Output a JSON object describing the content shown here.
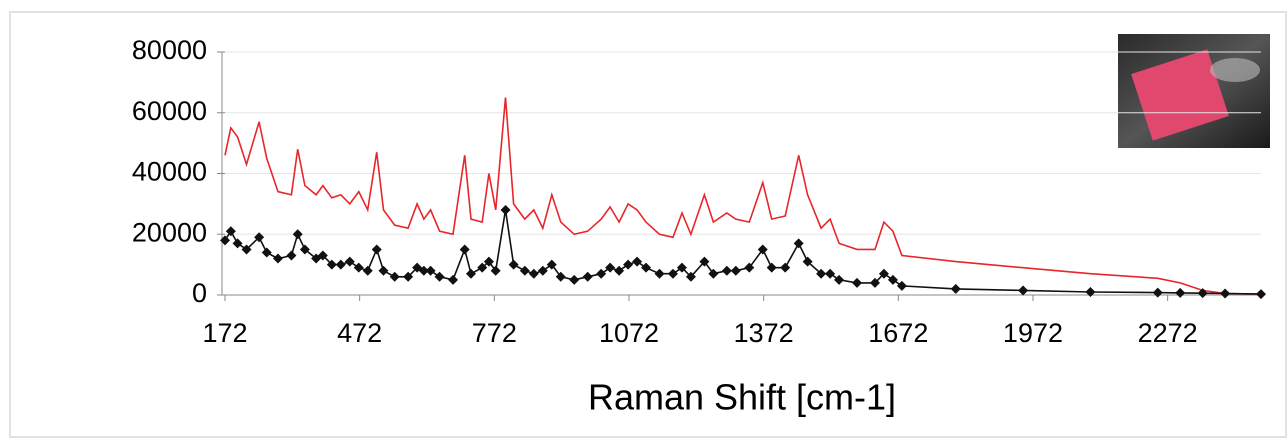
{
  "chart_data": {
    "type": "line",
    "x_label": "Raman Shift [cm-1]",
    "x": [
      172,
      185,
      200,
      220,
      248,
      265,
      290,
      320,
      334,
      350,
      375,
      390,
      410,
      430,
      450,
      470,
      490,
      510,
      525,
      550,
      580,
      600,
      615,
      630,
      650,
      680,
      706,
      720,
      745,
      760,
      775,
      797,
      815,
      840,
      860,
      880,
      900,
      920,
      950,
      980,
      1010,
      1030,
      1050,
      1070,
      1090,
      1110,
      1140,
      1170,
      1190,
      1210,
      1240,
      1260,
      1290,
      1310,
      1340,
      1370,
      1390,
      1420,
      1450,
      1470,
      1500,
      1520,
      1540,
      1580,
      1620,
      1640,
      1660,
      1680,
      1800,
      1950,
      2100,
      2250,
      2300,
      2350,
      2400,
      2480
    ],
    "series": [
      {
        "color": "#e8262a",
        "marker": false,
        "values": [
          46000,
          55000,
          52000,
          43000,
          57000,
          45000,
          34000,
          33000,
          48000,
          36000,
          33000,
          36000,
          32000,
          33000,
          30000,
          34000,
          28000,
          47000,
          28000,
          23000,
          22000,
          30000,
          25000,
          28000,
          21000,
          20000,
          46000,
          25000,
          24000,
          40000,
          28000,
          65000,
          30000,
          25000,
          28000,
          22000,
          33000,
          24000,
          20000,
          21000,
          25000,
          29000,
          24000,
          30000,
          28000,
          24000,
          20000,
          19000,
          27000,
          20000,
          33000,
          24000,
          27000,
          25000,
          24000,
          37000,
          25000,
          26000,
          46000,
          33000,
          22000,
          25000,
          17000,
          15000,
          15000,
          24000,
          21000,
          13000,
          11000,
          9000,
          7000,
          5500,
          4000,
          1500,
          500,
          300
        ]
      },
      {
        "color": "#111111",
        "marker": true,
        "values": [
          18000,
          21000,
          17000,
          15000,
          19000,
          14000,
          12000,
          13000,
          20000,
          15000,
          12000,
          13000,
          10000,
          10000,
          11000,
          9000,
          8000,
          15000,
          8000,
          6000,
          6000,
          9000,
          8000,
          8000,
          6000,
          5000,
          15000,
          7000,
          9000,
          11000,
          8000,
          28000,
          10000,
          8000,
          7000,
          8000,
          10000,
          6000,
          5000,
          6000,
          7000,
          9000,
          8000,
          10000,
          11000,
          9000,
          7000,
          7000,
          9000,
          6000,
          11000,
          7000,
          8000,
          8000,
          9000,
          15000,
          9000,
          9000,
          17000,
          11000,
          7000,
          7000,
          5000,
          4000,
          4000,
          7000,
          5000,
          3000,
          2000,
          1500,
          1000,
          800,
          700,
          600,
          500,
          300
        ]
      }
    ],
    "xlim": [
      172,
      2480
    ],
    "xticks": [
      172,
      472,
      772,
      1072,
      1372,
      1672,
      1972,
      2272
    ],
    "ylim": [
      0,
      80000
    ],
    "yticks": [
      0,
      20000,
      40000,
      60000,
      80000
    ],
    "grid": true
  }
}
